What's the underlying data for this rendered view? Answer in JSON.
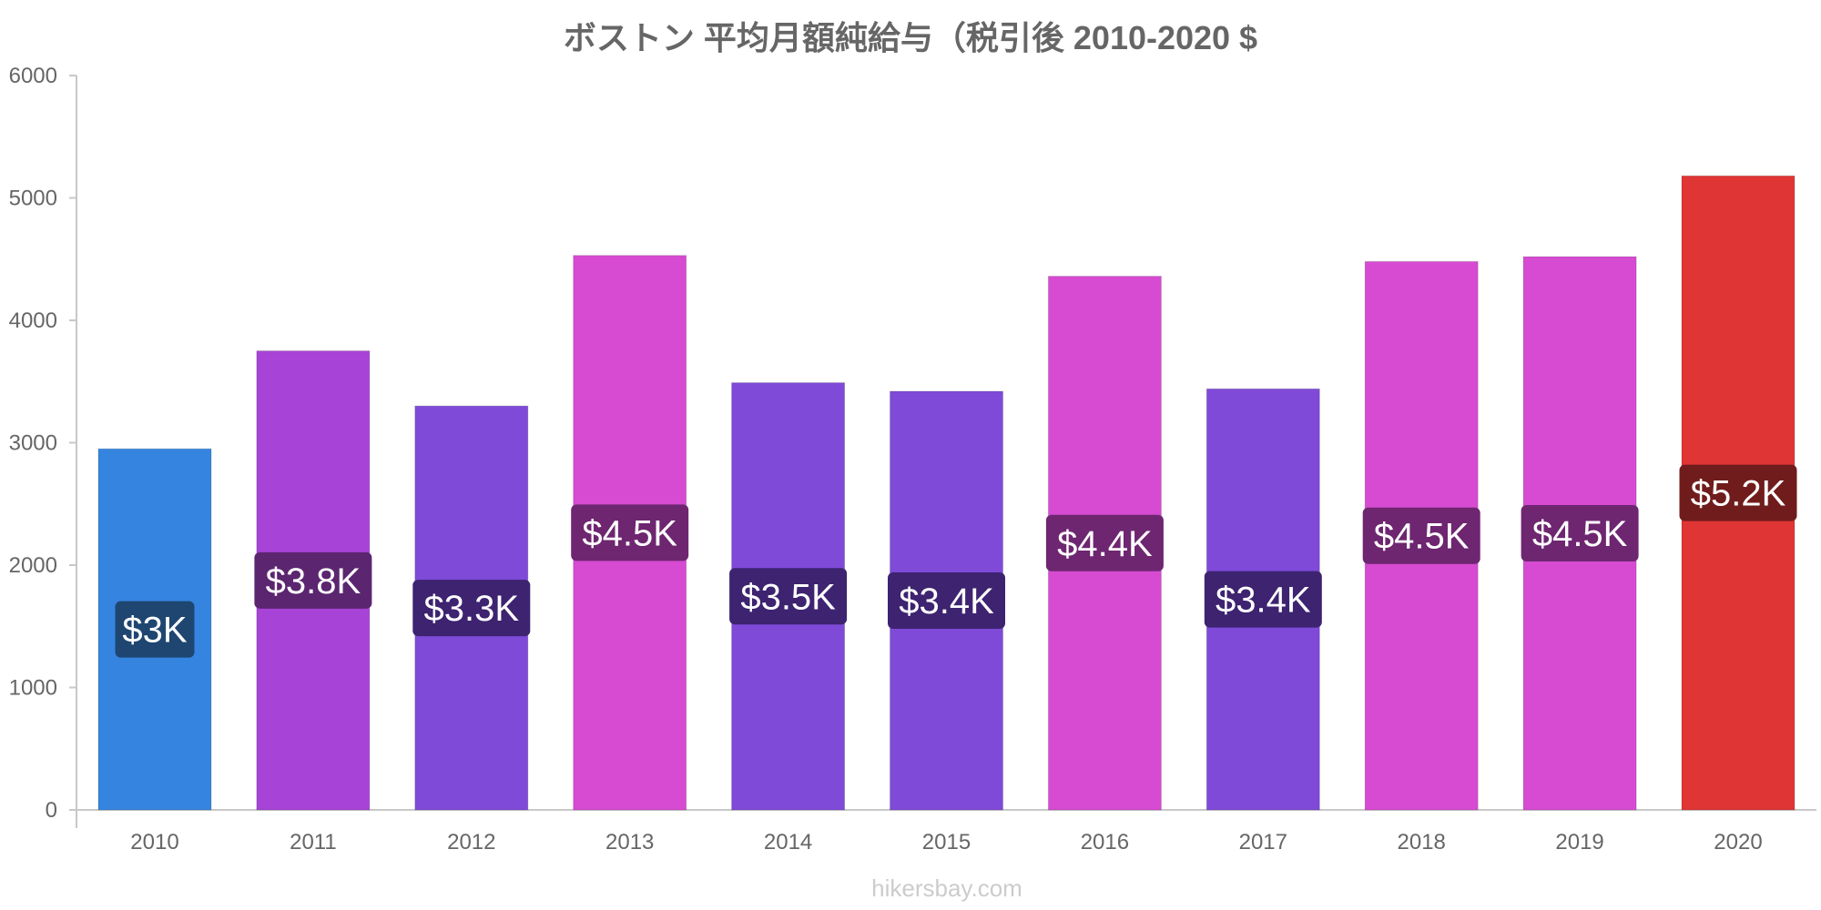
{
  "chart_data": {
    "type": "bar",
    "title": "ボストン 平均月額純給与（税引後 2010-2020 $",
    "categories": [
      "2010",
      "2011",
      "2012",
      "2013",
      "2014",
      "2015",
      "2016",
      "2017",
      "2018",
      "2019",
      "2020"
    ],
    "values": [
      2950,
      3750,
      3300,
      4530,
      3490,
      3420,
      4360,
      3440,
      4480,
      4520,
      5180
    ],
    "data_labels": [
      "$3K",
      "$3.8K",
      "$3.3K",
      "$4.5K",
      "$3.5K",
      "$3.4K",
      "$4.4K",
      "$3.4K",
      "$4.5K",
      "$4.5K",
      "$5.2K"
    ],
    "bar_colors": [
      "#3585e0",
      "#a743d6",
      "#7f4ad8",
      "#d64bd2",
      "#7f4ad8",
      "#7f4ad8",
      "#d64bd2",
      "#7f4ad8",
      "#d64bd2",
      "#d64bd2",
      "#e03535"
    ],
    "label_colors": [
      "#1f4670",
      "#5b2570",
      "#3d2370",
      "#6e2670",
      "#3d2370",
      "#3d2370",
      "#6e2670",
      "#3d2370",
      "#6e2670",
      "#6e2670",
      "#701c1c"
    ],
    "ylim": [
      0,
      6000
    ],
    "yticks": [
      0,
      1000,
      2000,
      3000,
      4000,
      5000,
      6000
    ],
    "xlabel": "",
    "ylabel": "",
    "legend": "none",
    "grid": false
  },
  "footer": "hikersbay.com"
}
